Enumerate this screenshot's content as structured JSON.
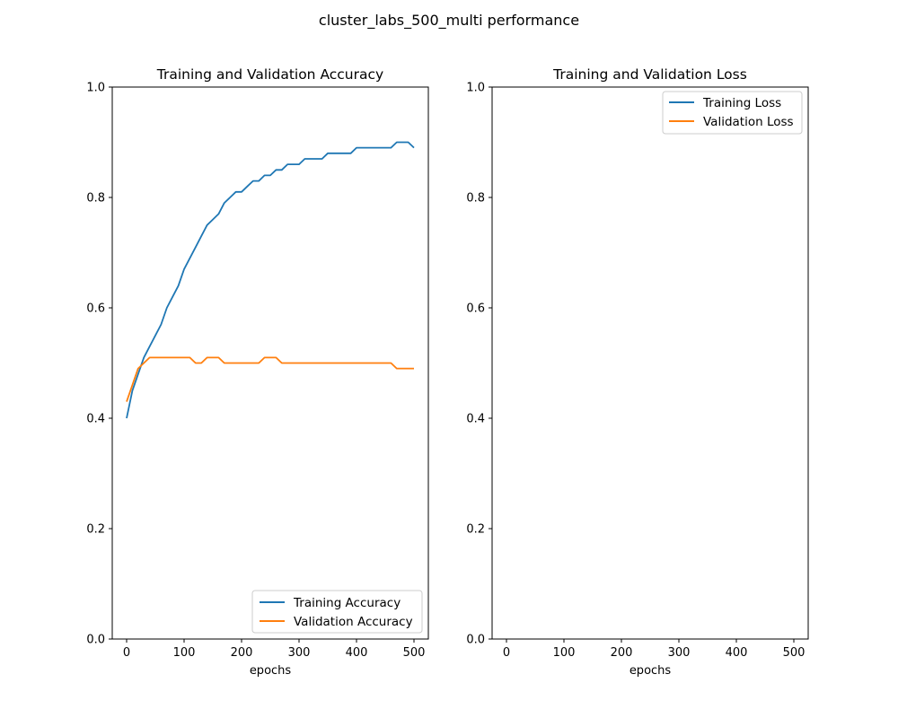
{
  "figure": {
    "title": "cluster_labs_500_multi performance"
  },
  "chart_data": [
    {
      "type": "line",
      "title": "Training and Validation Accuracy",
      "xlabel": "epochs",
      "ylabel": "",
      "xlim": [
        -25,
        525
      ],
      "ylim": [
        0.0,
        1.0
      ],
      "xticks": [
        0,
        100,
        200,
        300,
        400,
        500
      ],
      "yticks": [
        0.0,
        0.2,
        0.4,
        0.6,
        0.8,
        1.0
      ],
      "xtick_labels": [
        "0",
        "100",
        "200",
        "300",
        "400",
        "500"
      ],
      "ytick_labels": [
        "0.0",
        "0.2",
        "0.4",
        "0.6",
        "0.8",
        "1.0"
      ],
      "grid": false,
      "legend_position": "lower-right",
      "series": [
        {
          "name": "Training Accuracy",
          "color": "#1f77b4",
          "x": [
            0,
            10,
            20,
            30,
            40,
            50,
            60,
            70,
            80,
            90,
            100,
            110,
            120,
            130,
            140,
            150,
            160,
            170,
            180,
            190,
            200,
            210,
            220,
            230,
            240,
            250,
            260,
            270,
            280,
            290,
            300,
            310,
            320,
            330,
            340,
            350,
            360,
            370,
            380,
            390,
            400,
            410,
            420,
            430,
            440,
            450,
            460,
            470,
            480,
            490,
            500
          ],
          "y": [
            0.4,
            0.45,
            0.48,
            0.51,
            0.53,
            0.55,
            0.57,
            0.6,
            0.62,
            0.64,
            0.67,
            0.69,
            0.71,
            0.73,
            0.75,
            0.76,
            0.77,
            0.79,
            0.8,
            0.81,
            0.81,
            0.82,
            0.83,
            0.83,
            0.84,
            0.84,
            0.85,
            0.85,
            0.86,
            0.86,
            0.86,
            0.87,
            0.87,
            0.87,
            0.87,
            0.88,
            0.88,
            0.88,
            0.88,
            0.88,
            0.89,
            0.89,
            0.89,
            0.89,
            0.89,
            0.89,
            0.89,
            0.9,
            0.9,
            0.9,
            0.89
          ]
        },
        {
          "name": "Validation Accuracy",
          "color": "#ff7f0e",
          "x": [
            0,
            10,
            20,
            30,
            40,
            50,
            60,
            70,
            80,
            90,
            100,
            110,
            120,
            130,
            140,
            150,
            160,
            170,
            180,
            190,
            200,
            210,
            220,
            230,
            240,
            250,
            260,
            270,
            280,
            290,
            300,
            310,
            320,
            330,
            340,
            350,
            360,
            370,
            380,
            390,
            400,
            410,
            420,
            430,
            440,
            450,
            460,
            470,
            480,
            490,
            500
          ],
          "y": [
            0.43,
            0.46,
            0.49,
            0.5,
            0.51,
            0.51,
            0.51,
            0.51,
            0.51,
            0.51,
            0.51,
            0.51,
            0.5,
            0.5,
            0.51,
            0.51,
            0.51,
            0.5,
            0.5,
            0.5,
            0.5,
            0.5,
            0.5,
            0.5,
            0.51,
            0.51,
            0.51,
            0.5,
            0.5,
            0.5,
            0.5,
            0.5,
            0.5,
            0.5,
            0.5,
            0.5,
            0.5,
            0.5,
            0.5,
            0.5,
            0.5,
            0.5,
            0.5,
            0.5,
            0.5,
            0.5,
            0.5,
            0.49,
            0.49,
            0.49,
            0.49
          ]
        }
      ]
    },
    {
      "type": "line",
      "title": "Training and Validation Loss",
      "xlabel": "epochs",
      "ylabel": "",
      "xlim": [
        -25,
        525
      ],
      "ylim": [
        0.0,
        1.0
      ],
      "xticks": [
        0,
        100,
        200,
        300,
        400,
        500
      ],
      "yticks": [
        0.0,
        0.2,
        0.4,
        0.6,
        0.8,
        1.0
      ],
      "xtick_labels": [
        "0",
        "100",
        "200",
        "300",
        "400",
        "500"
      ],
      "ytick_labels": [
        "0.0",
        "0.2",
        "0.4",
        "0.6",
        "0.8",
        "1.0"
      ],
      "grid": false,
      "legend_position": "upper-right",
      "series": [
        {
          "name": "Training Loss",
          "color": "#1f77b4",
          "x": [],
          "y": []
        },
        {
          "name": "Validation Loss",
          "color": "#ff7f0e",
          "x": [],
          "y": []
        }
      ]
    }
  ]
}
